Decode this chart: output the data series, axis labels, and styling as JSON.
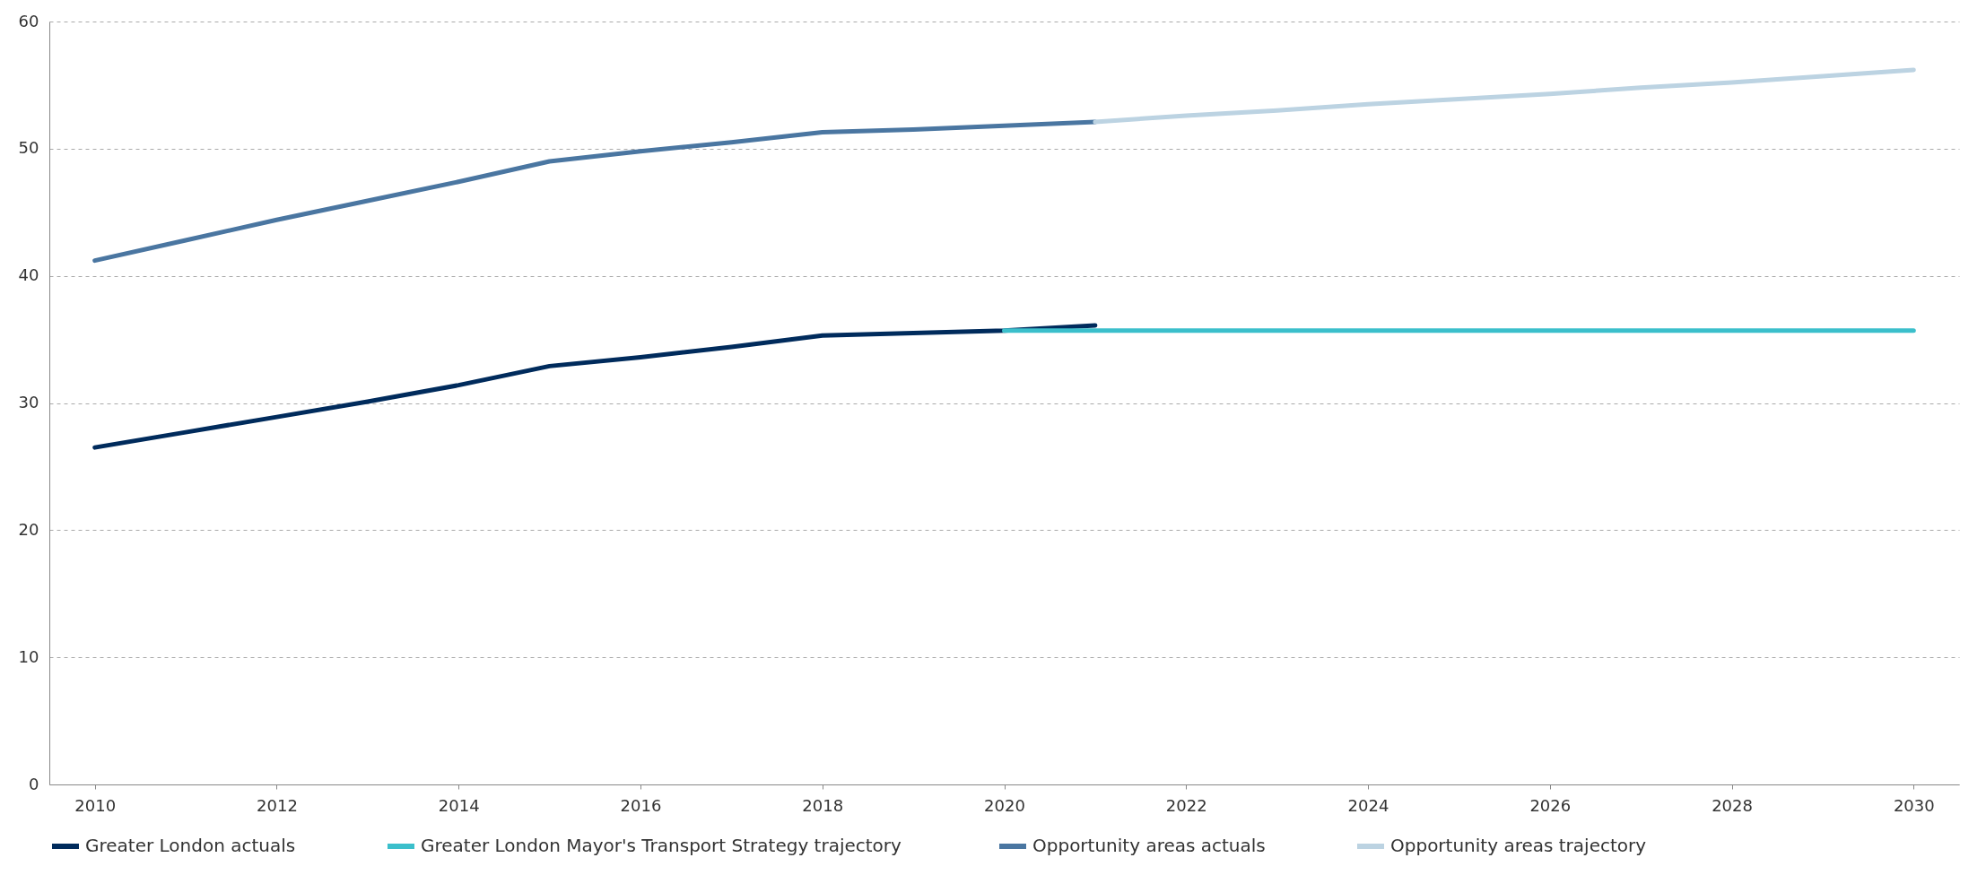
{
  "chart_data": {
    "type": "line",
    "xlim": [
      2009.5,
      2030.5
    ],
    "xticks": [
      2010,
      2012,
      2014,
      2016,
      2018,
      2020,
      2022,
      2024,
      2026,
      2028,
      2030
    ],
    "ylim": [
      0,
      60
    ],
    "yticks": [
      0,
      10,
      20,
      30,
      40,
      50,
      60
    ],
    "grid": "y",
    "legend": "bottom",
    "marker": "none",
    "line_style": "solid",
    "series": [
      {
        "name": "Greater London actuals",
        "color": "#002b5c",
        "x": [
          2010,
          2011,
          2012,
          2013,
          2014,
          2015,
          2016,
          2017,
          2018,
          2019,
          2020,
          2021
        ],
        "values": [
          26.5,
          27.7,
          28.9,
          30.1,
          31.4,
          32.9,
          33.6,
          34.4,
          35.3,
          35.5,
          35.7,
          36.1
        ]
      },
      {
        "name": "Greater London Mayor's Transport Strategy  trajectory",
        "color": "#3bbfcb",
        "x": [
          2020,
          2021,
          2022,
          2023,
          2024,
          2025,
          2026,
          2027,
          2028,
          2029,
          2030
        ],
        "values": [
          35.7,
          35.7,
          35.7,
          35.7,
          35.7,
          35.7,
          35.7,
          35.7,
          35.7,
          35.7,
          35.7
        ]
      },
      {
        "name": "Opportunity areas actuals",
        "color": "#4a76a1",
        "x": [
          2010,
          2011,
          2012,
          2013,
          2014,
          2015,
          2016,
          2017,
          2018,
          2019,
          2020,
          2021
        ],
        "values": [
          41.2,
          42.8,
          44.4,
          45.9,
          47.4,
          49.0,
          49.8,
          50.5,
          51.3,
          51.5,
          51.8,
          52.1
        ]
      },
      {
        "name": "Opportunity areas trajectory",
        "color": "#bcd3e2",
        "x": [
          2021,
          2022,
          2023,
          2024,
          2025,
          2026,
          2027,
          2028,
          2029,
          2030
        ],
        "values": [
          52.1,
          52.6,
          53.0,
          53.5,
          53.9,
          54.3,
          54.8,
          55.2,
          55.7,
          56.2
        ]
      }
    ]
  }
}
